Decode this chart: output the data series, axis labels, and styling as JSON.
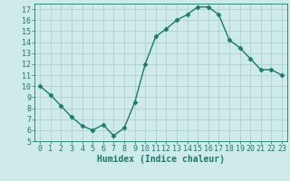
{
  "x": [
    0,
    1,
    2,
    3,
    4,
    5,
    6,
    7,
    8,
    9,
    10,
    11,
    12,
    13,
    14,
    15,
    16,
    17,
    18,
    19,
    20,
    21,
    22,
    23
  ],
  "y": [
    10,
    9.2,
    8.2,
    7.2,
    6.4,
    6.0,
    6.5,
    5.5,
    6.2,
    8.5,
    12.0,
    14.5,
    15.2,
    16.0,
    16.5,
    17.2,
    17.2,
    16.5,
    14.2,
    13.5,
    12.5,
    11.5,
    11.5,
    11.0
  ],
  "line_color": "#1a7a6a",
  "marker": "D",
  "marker_size": 2.5,
  "bg_color": "#ceeaea",
  "grid_color": "#b0cfcf",
  "xlabel": "Humidex (Indice chaleur)",
  "xlabel_fontsize": 7,
  "ylim": [
    5,
    17.5
  ],
  "xlim": [
    -0.5,
    23.5
  ],
  "yticks": [
    5,
    6,
    7,
    8,
    9,
    10,
    11,
    12,
    13,
    14,
    15,
    16,
    17
  ],
  "xticks": [
    0,
    1,
    2,
    3,
    4,
    5,
    6,
    7,
    8,
    9,
    10,
    11,
    12,
    13,
    14,
    15,
    16,
    17,
    18,
    19,
    20,
    21,
    22,
    23
  ],
  "tick_fontsize": 6,
  "linewidth": 1.0
}
